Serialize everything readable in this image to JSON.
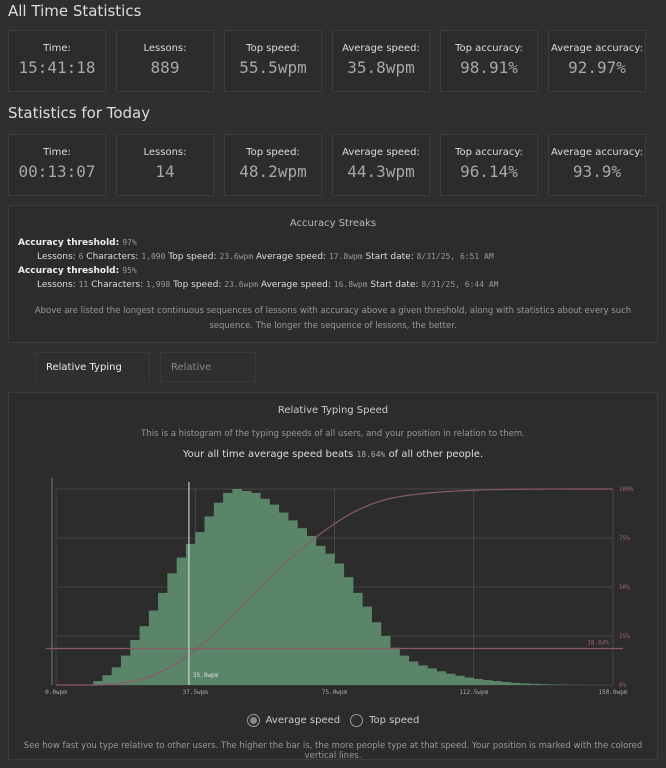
{
  "all_time": {
    "title": "All Time Statistics",
    "stats": [
      {
        "label": "Time:",
        "value": "15:41:18"
      },
      {
        "label": "Lessons:",
        "value": "889"
      },
      {
        "label": "Top speed:",
        "value": "55.5wpm"
      },
      {
        "label": "Average speed:",
        "value": "35.8wpm"
      },
      {
        "label": "Top accuracy:",
        "value": "98.91%"
      },
      {
        "label": "Average accuracy:",
        "value": "92.97%"
      }
    ]
  },
  "today": {
    "title": "Statistics for Today",
    "stats": [
      {
        "label": "Time:",
        "value": "00:13:07"
      },
      {
        "label": "Lessons:",
        "value": "14"
      },
      {
        "label": "Top speed:",
        "value": "48.2wpm"
      },
      {
        "label": "Average speed:",
        "value": "44.3wpm"
      },
      {
        "label": "Top accuracy:",
        "value": "96.14%"
      },
      {
        "label": "Average accuracy:",
        "value": "93.9%"
      }
    ]
  },
  "streaks": {
    "title": "Accuracy Streaks",
    "threshold_label": "Accuracy threshold:",
    "lessons_label": "Lessons:",
    "characters_label": "Characters:",
    "top_speed_label": "Top speed:",
    "avg_speed_label": "Average speed:",
    "start_date_label": "Start date:",
    "items": [
      {
        "threshold": "97%",
        "lessons": "6",
        "characters": "1,090",
        "top_speed": "23.6wpm",
        "avg_speed": "17.8wpm",
        "start_date": "8/31/25, 6:51 AM"
      },
      {
        "threshold": "95%",
        "lessons": "11",
        "characters": "1,998",
        "top_speed": "23.6wpm",
        "avg_speed": "16.8wpm",
        "start_date": "8/31/25, 6:44 AM"
      }
    ],
    "note": "Above are listed the longest continuous sequences of lessons with accuracy above a given threshold, along with statistics about every such sequence. The longer the sequence of lessons, the better."
  },
  "tabs": [
    {
      "label": "Relative Typing Speed",
      "active": true
    },
    {
      "label": "Relative Accuracy",
      "active": false
    }
  ],
  "panel": {
    "title": "Relative Typing Speed",
    "description": "This is a histogram of the typing speeds of all users, and your position in relation to them.",
    "beats_prefix": "Your all time average speed beats",
    "beats_value": "18.64%",
    "beats_suffix": "of all other people.",
    "radios": [
      {
        "label": "Average speed",
        "checked": true
      },
      {
        "label": "Top speed",
        "checked": false
      }
    ],
    "footer": "See how fast you type relative to other users. The higher the bar is, the more people type at that speed. Your position is marked with the colored vertical lines."
  },
  "chart_data": {
    "type": "bar",
    "x_unit": "wpm",
    "xlim": [
      0,
      150
    ],
    "bin_width": 2.5,
    "bin_starts": [
      0,
      2.5,
      5,
      7.5,
      10,
      12.5,
      15,
      17.5,
      20,
      22.5,
      25,
      27.5,
      30,
      32.5,
      35,
      37.5,
      40,
      42.5,
      45,
      47.5,
      50,
      52.5,
      55,
      57.5,
      60,
      62.5,
      65,
      67.5,
      70,
      72.5,
      75,
      77.5,
      80,
      82.5,
      85,
      87.5,
      90,
      92.5,
      95,
      97.5,
      100,
      102.5,
      105,
      107.5,
      110,
      112.5,
      115,
      117.5,
      120,
      122.5,
      125,
      127.5,
      130,
      132.5,
      135,
      137.5,
      140,
      142.5,
      145,
      147.5
    ],
    "relative_counts": [
      0,
      0,
      0,
      0,
      0.02,
      0.05,
      0.09,
      0.15,
      0.23,
      0.3,
      0.38,
      0.47,
      0.57,
      0.65,
      0.72,
      0.78,
      0.86,
      0.93,
      0.98,
      1.0,
      0.99,
      0.98,
      0.95,
      0.92,
      0.88,
      0.84,
      0.8,
      0.76,
      0.71,
      0.67,
      0.62,
      0.55,
      0.47,
      0.4,
      0.32,
      0.25,
      0.19,
      0.15,
      0.12,
      0.1,
      0.085,
      0.07,
      0.058,
      0.047,
      0.038,
      0.031,
      0.025,
      0.02,
      0.015,
      0.011,
      0.008,
      0.006,
      0.004,
      0.003,
      0.002,
      0.001,
      0.001,
      0,
      0,
      0
    ],
    "x_ticks": [
      "0.0wpm",
      "37.5wpm",
      "75.0wpm",
      "112.5wpm",
      "150.0wpm"
    ],
    "x_tick_values": [
      0,
      37.5,
      75,
      112.5,
      150
    ],
    "right_axis_ticks": [
      "100%",
      "75%",
      "50%",
      "25%",
      "0%"
    ],
    "right_axis_values": [
      100,
      75,
      50,
      25,
      0
    ],
    "cumulative_line": true,
    "marker_speed": 35.8,
    "marker_label": "35.8wpm",
    "percentile": 18.64,
    "percentile_label": "18.64%",
    "grid": true,
    "colors": {
      "bars": "#5a8569",
      "cumulative": "#8a5a66",
      "marker": "#e6e6e6",
      "grid": "#4e4e4e"
    }
  }
}
